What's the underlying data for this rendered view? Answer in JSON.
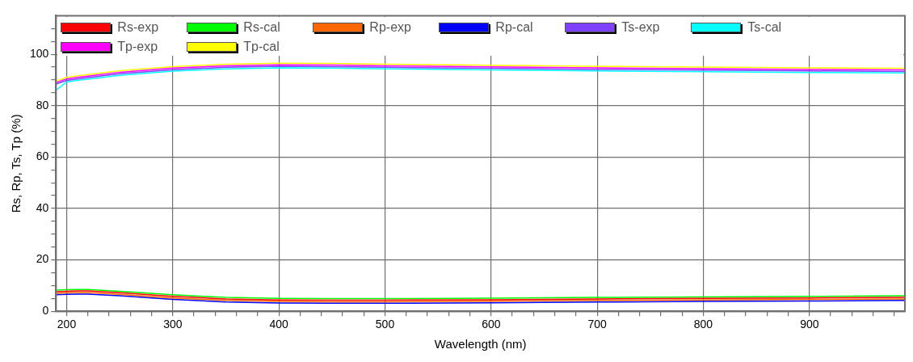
{
  "chart_data": {
    "type": "line",
    "xlabel": "Wavelength (nm)",
    "ylabel": "Rs, Rp, Ts, Tp (%)",
    "legend": "top left",
    "grid": true,
    "marker": "none",
    "line_style": "solid",
    "xlim": [
      190,
      990
    ],
    "ylim": [
      0,
      115
    ],
    "xticks": [
      200,
      {
        "value": 220,
        "label": null
      },
      {
        "value": 240,
        "label": null
      },
      {
        "value": 260,
        "label": null
      },
      {
        "value": 280,
        "label": null
      },
      300,
      {
        "value": 320,
        "label": null
      },
      {
        "value": 340,
        "label": null
      },
      {
        "value": 360,
        "label": null
      },
      {
        "value": 380,
        "label": null
      },
      400,
      {
        "value": 420,
        "label": null
      },
      {
        "value": 440,
        "label": null
      },
      {
        "value": 460,
        "label": null
      },
      {
        "value": 480,
        "label": null
      },
      500,
      {
        "value": 520,
        "label": null
      },
      {
        "value": 540,
        "label": null
      },
      {
        "value": 560,
        "label": null
      },
      {
        "value": 580,
        "label": null
      },
      600,
      {
        "value": 620,
        "label": null
      },
      {
        "value": 640,
        "label": null
      },
      {
        "value": 660,
        "label": null
      },
      {
        "value": 680,
        "label": null
      },
      700,
      {
        "value": 720,
        "label": null
      },
      {
        "value": 740,
        "label": null
      },
      {
        "value": 760,
        "label": null
      },
      {
        "value": 780,
        "label": null
      },
      800,
      {
        "value": 820,
        "label": null
      },
      {
        "value": 840,
        "label": null
      },
      {
        "value": 860,
        "label": null
      },
      {
        "value": 880,
        "label": null
      },
      900,
      {
        "value": 920,
        "label": null
      },
      {
        "value": 940,
        "label": null
      },
      {
        "value": 960,
        "label": null
      },
      {
        "value": 980,
        "label": null
      }
    ],
    "yticks": [
      0,
      {
        "value": 5,
        "label": null
      },
      {
        "value": 10,
        "label": null
      },
      {
        "value": 15,
        "label": null
      },
      20,
      {
        "value": 25,
        "label": null
      },
      {
        "value": 30,
        "label": null
      },
      {
        "value": 35,
        "label": null
      },
      40,
      {
        "value": 45,
        "label": null
      },
      {
        "value": 50,
        "label": null
      },
      {
        "value": 55,
        "label": null
      },
      60,
      {
        "value": 65,
        "label": null
      },
      {
        "value": 70,
        "label": null
      },
      {
        "value": 75,
        "label": null
      },
      80,
      {
        "value": 85,
        "label": null
      },
      {
        "value": 90,
        "label": null
      },
      {
        "value": 95,
        "label": null
      },
      100,
      {
        "value": 105,
        "label": null
      },
      {
        "value": 110,
        "label": null
      }
    ],
    "x": [
      190,
      200,
      210,
      220,
      250,
      300,
      350,
      400,
      450,
      500,
      600,
      700,
      800,
      900,
      990
    ],
    "series": [
      {
        "name": "Rs-exp",
        "color": "#ff0000",
        "values": [
          7.6,
          7.8,
          7.9,
          7.9,
          7.2,
          5.8,
          4.8,
          4.4,
          4.3,
          4.3,
          4.5,
          4.8,
          5.0,
          5.2,
          5.4
        ]
      },
      {
        "name": "Rs-cal",
        "color": "#00ff00",
        "values": [
          8.2,
          8.4,
          8.5,
          8.5,
          7.8,
          6.4,
          5.4,
          5.0,
          4.9,
          4.9,
          5.1,
          5.4,
          5.6,
          5.8,
          6.0
        ]
      },
      {
        "name": "Rp-exp",
        "color": "#ff6600",
        "values": [
          7.0,
          7.2,
          7.3,
          7.3,
          6.6,
          5.2,
          4.2,
          3.8,
          3.7,
          3.7,
          3.9,
          4.2,
          4.4,
          4.6,
          4.8
        ]
      },
      {
        "name": "Rp-cal",
        "color": "#0000ff",
        "values": [
          6.4,
          6.6,
          6.7,
          6.7,
          6.0,
          4.6,
          3.6,
          3.2,
          3.1,
          3.1,
          3.3,
          3.6,
          3.8,
          4.0,
          4.2
        ]
      },
      {
        "name": "Ts-exp",
        "color": "#8040ff",
        "values": [
          88.4,
          89.8,
          90.4,
          90.9,
          92.4,
          94,
          94.9,
          95.3,
          95.2,
          94.9,
          94.5,
          94.1,
          93.8,
          93.5,
          93.3
        ]
      },
      {
        "name": "Ts-cal",
        "color": "#00ffff",
        "values": [
          86,
          89.2,
          89.8,
          90.3,
          91.8,
          93.4,
          94.3,
          94.7,
          94.6,
          94.3,
          93.9,
          93.5,
          93.2,
          92.9,
          92.7
        ]
      },
      {
        "name": "Tp-exp",
        "color": "#ff00ff",
        "values": [
          89,
          90.4,
          91,
          91.5,
          93,
          94.6,
          95.5,
          95.9,
          95.8,
          95.5,
          95.1,
          94.7,
          94.4,
          94.1,
          93.9
        ]
      },
      {
        "name": "Tp-cal",
        "color": "#ffff00",
        "values": [
          89.6,
          91,
          91.6,
          92.1,
          93.6,
          95.2,
          96.1,
          96.5,
          96.4,
          96.1,
          95.7,
          95.3,
          95,
          94.7,
          94.5
        ]
      }
    ]
  }
}
